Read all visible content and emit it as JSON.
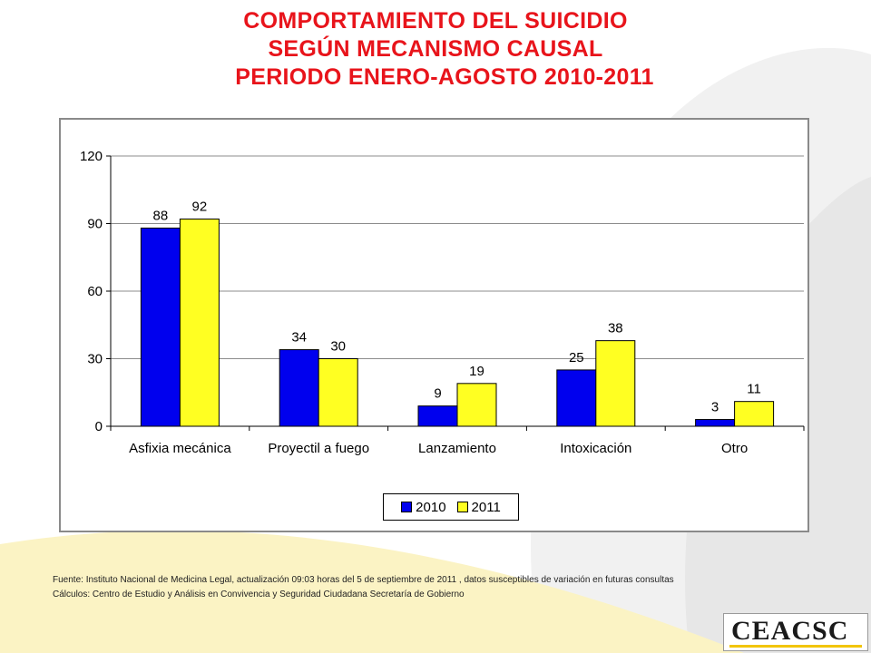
{
  "title": {
    "line1": "COMPORTAMIENTO DEL SUICIDIO",
    "line2": "SEGÚN MECANISMO CAUSAL",
    "line3": "PERIODO ENERO-AGOSTO 2010-2011"
  },
  "chart_data": {
    "type": "bar",
    "categories": [
      "Asfixia mecánica",
      "Proyectil a fuego",
      "Lanzamiento",
      "Intoxicación",
      "Otro"
    ],
    "series": [
      {
        "name": "2010",
        "color": "#0000ee",
        "values": [
          88,
          34,
          9,
          25,
          3
        ]
      },
      {
        "name": "2011",
        "color": "#ffff22",
        "values": [
          92,
          30,
          19,
          38,
          11
        ]
      }
    ],
    "yticks": [
      "0",
      "30",
      "60",
      "90",
      "120"
    ],
    "ylim": [
      0,
      120
    ],
    "grid": true,
    "legend_position": "bottom"
  },
  "footnote": {
    "source": "Fuente: Instituto Nacional de Medicina Legal, actualización  09:03  horas del  5 de  septiembre de 2011 , datos susceptibles de variación en futuras consultas",
    "calc": "Cálculos:  Centro de Estudio  y Análisis en Convivencia y Seguridad Ciudadana Secretaría de Gobierno"
  },
  "logo": {
    "text": "CEACSC"
  },
  "colors": {
    "title": "#e8141b",
    "accent_yellow": "#f2c500"
  }
}
